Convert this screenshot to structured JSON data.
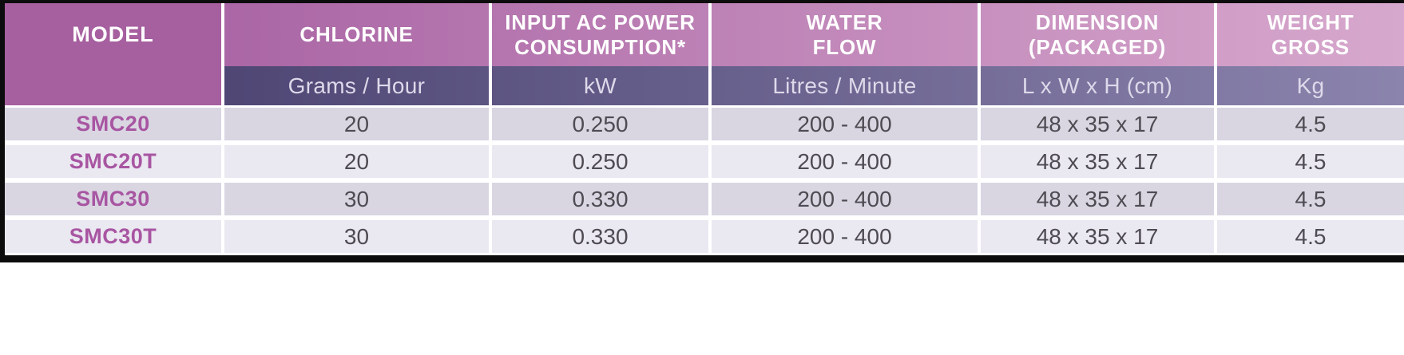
{
  "columns": [
    {
      "label": "MODEL",
      "unit": ""
    },
    {
      "label": "CHLORINE",
      "unit": "Grams / Hour"
    },
    {
      "label": "INPUT AC POWER\nCONSUMPTION*",
      "unit": "kW"
    },
    {
      "label": "WATER\nFLOW",
      "unit": "Litres / Minute"
    },
    {
      "label": "DIMENSION\n(PACKAGED)",
      "unit": "L x W x H (cm)"
    },
    {
      "label": "WEIGHT\nGROSS",
      "unit": "Kg"
    }
  ],
  "rows": [
    {
      "model": "SMC20",
      "chlorine": "20",
      "power_kw": "0.250",
      "water_flow": "200 - 400",
      "dimension": "48 x 35 x 17",
      "weight_kg": "4.5"
    },
    {
      "model": "SMC20T",
      "chlorine": "20",
      "power_kw": "0.250",
      "water_flow": "200 - 400",
      "dimension": "48 x 35 x 17",
      "weight_kg": "4.5"
    },
    {
      "model": "SMC30",
      "chlorine": "30",
      "power_kw": "0.330",
      "water_flow": "200 - 400",
      "dimension": "48 x 35 x 17",
      "weight_kg": "4.5"
    },
    {
      "model": "SMC30T",
      "chlorine": "30",
      "power_kw": "0.330",
      "water_flow": "200 - 400",
      "dimension": "48 x 35 x 17",
      "weight_kg": "4.5"
    }
  ],
  "colors": {
    "header_gradient_start": "#a25a9e",
    "header_gradient_end": "#d7a8cd",
    "subheader_gradient_start": "#443b6a",
    "subheader_gradient_end": "#8b84ad",
    "model_column_bg": "#a65f9f",
    "model_text": "#a855a2",
    "row_odd_bg": "#d9d6e2",
    "row_even_bg": "#eae8f1",
    "value_text": "#4f4b52",
    "border_black": "#0c0c0c"
  }
}
